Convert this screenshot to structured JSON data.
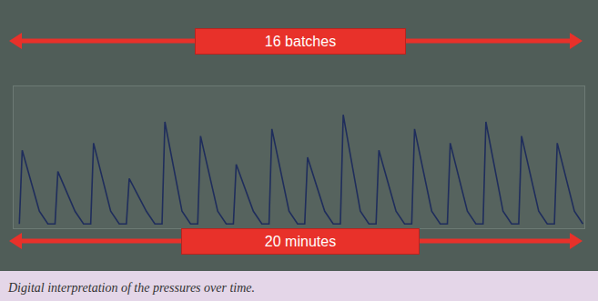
{
  "chart_data": {
    "type": "line",
    "annotations": [
      "16 batches",
      "20 minutes"
    ],
    "caption": "Digital interpretation of the pressures over time.",
    "x": [
      0.2,
      0.3,
      0.9,
      1.2,
      1.45,
      1.55,
      2.15,
      2.45,
      2.7,
      2.8,
      3.4,
      3.7,
      3.95,
      4.05,
      4.65,
      4.95,
      5.2,
      5.3,
      5.9,
      6.2,
      6.45,
      6.55,
      7.15,
      7.45,
      7.7,
      7.8,
      8.4,
      8.7,
      8.95,
      9.05,
      9.65,
      9.95,
      10.2,
      10.3,
      10.9,
      11.2,
      11.45,
      11.55,
      12.15,
      12.45,
      12.7,
      12.8,
      13.4,
      13.7,
      13.95,
      14.05,
      14.65,
      14.95,
      15.2,
      15.3,
      15.9,
      16.2,
      16.45,
      16.55,
      17.15,
      17.45,
      17.7,
      17.8,
      18.4,
      18.7,
      18.95,
      19.05,
      19.65,
      19.95
    ],
    "values": [
      3,
      55,
      12,
      3,
      3,
      40,
      12,
      3,
      3,
      60,
      12,
      3,
      3,
      35,
      12,
      3,
      3,
      75,
      12,
      3,
      3,
      65,
      12,
      3,
      3,
      45,
      12,
      3,
      3,
      70,
      12,
      3,
      3,
      50,
      12,
      3,
      3,
      80,
      12,
      3,
      3,
      55,
      12,
      3,
      3,
      70,
      12,
      3,
      3,
      60,
      12,
      3,
      3,
      75,
      12,
      3,
      3,
      65,
      12,
      3,
      3,
      60,
      12,
      3
    ],
    "color": "#1f2d5c",
    "xlim": [
      0,
      20
    ],
    "ylim": [
      0,
      100
    ],
    "tick_labels": false,
    "grid": false
  }
}
